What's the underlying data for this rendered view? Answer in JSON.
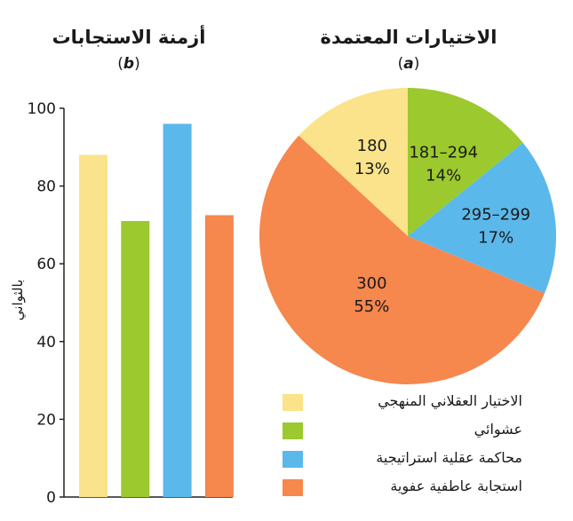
{
  "titles": {
    "left_title": "أزمنة الاستجابات",
    "left_panel_label": "b",
    "right_title": "الاختيارات المعتمدة",
    "right_panel_label": "a"
  },
  "chart_data": [
    {
      "type": "bar",
      "panel": "b",
      "title": "أزمنة الاستجابات",
      "ylabel": "بالثواني",
      "ylim": [
        0,
        100
      ],
      "yticks": [
        0,
        20,
        40,
        60,
        80,
        100
      ],
      "categories": [
        "الاختيار العقلاني المنهجي",
        "عشوائي",
        "محاكمة عقلية استراتيجية",
        "استجابة عاطفية عفوية"
      ],
      "values": [
        88,
        71,
        96,
        72.5
      ],
      "colors": [
        "#fae38a",
        "#9cc92d",
        "#5bb8ea",
        "#f6874d"
      ]
    },
    {
      "type": "pie",
      "panel": "a",
      "title": "الاختيارات المعتمدة",
      "slices": [
        {
          "label": "181–294",
          "percent": "14%",
          "value": 14,
          "color": "#9cc92d"
        },
        {
          "label": "295–299",
          "percent": "17%",
          "value": 17,
          "color": "#5bb8ea"
        },
        {
          "label": "300",
          "percent": "55%",
          "value": 55,
          "color": "#f6874d"
        },
        {
          "label": "180",
          "percent": "13%",
          "value": 13,
          "color": "#fae38a"
        }
      ]
    }
  ],
  "legend": [
    {
      "label": "الاختيار العقلاني المنهجي",
      "color": "#fae38a"
    },
    {
      "label": "عشوائي",
      "color": "#9cc92d"
    },
    {
      "label": "محاكمة عقلية استراتيجية",
      "color": "#5bb8ea"
    },
    {
      "label": "استجابة عاطفية عفوية",
      "color": "#f6874d"
    }
  ]
}
